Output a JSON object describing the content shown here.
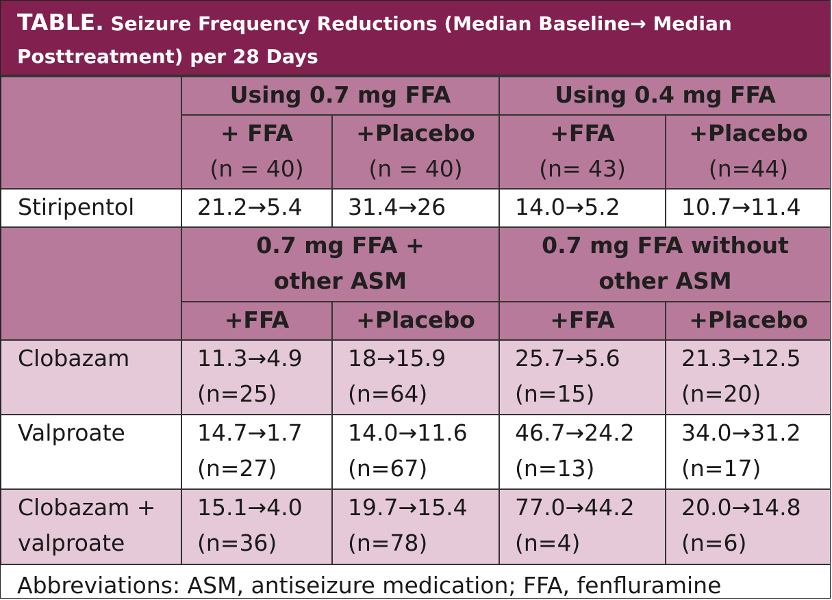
{
  "title": {
    "lead": "TABLE.",
    "line1": "Seizure Frequency Reductions (Median Baseline→ Median",
    "line2": "Posttreatment) per 28 Days"
  },
  "group_headers_top": [
    "Using 0.7 mg FFA",
    "Using 0.4 mg FFA"
  ],
  "sub_headers_top": [
    {
      "label": "+ FFA",
      "n": "(n = 40)"
    },
    {
      "label": "+Placebo",
      "n": "(n = 40)"
    },
    {
      "label": "+FFA",
      "n": "(n= 43)"
    },
    {
      "label": "+Placebo",
      "n": "(n=44)"
    }
  ],
  "stiripentol_row": {
    "label": "Stiripentol",
    "values": [
      "21.2→5.4",
      "31.4→26",
      "14.0→5.2",
      "10.7→11.4"
    ]
  },
  "group_headers_bottom": [
    {
      "line1": "0.7 mg FFA +",
      "line2": "other ASM"
    },
    {
      "line1": "0.7 mg FFA without",
      "line2": "other ASM"
    }
  ],
  "sub_headers_bottom": [
    "+FFA",
    "+Placebo",
    "+FFA",
    "+Placebo"
  ],
  "rows": [
    {
      "label_line1": "Clobazam",
      "label_line2": "",
      "cells": [
        {
          "value": "11.3→4.9",
          "n": "(n=25)"
        },
        {
          "value": "18→15.9",
          "n": "(n=64)"
        },
        {
          "value": "25.7→5.6",
          "n": "(n=15)"
        },
        {
          "value": "21.3→12.5",
          "n": "(n=20)"
        }
      ]
    },
    {
      "label_line1": "Valproate",
      "label_line2": "",
      "cells": [
        {
          "value": "14.7→1.7",
          "n": "(n=27)"
        },
        {
          "value": "14.0→11.6",
          "n": "(n=67)"
        },
        {
          "value": "46.7→24.2",
          "n": "(n=13)"
        },
        {
          "value": "34.0→31.2",
          "n": "(n=17)"
        }
      ]
    },
    {
      "label_line1": "Clobazam +",
      "label_line2": "valproate",
      "cells": [
        {
          "value": "15.1→4.0",
          "n": "(n=36)"
        },
        {
          "value": "19.7→15.4",
          "n": "(n=78)"
        },
        {
          "value": "77.0→44.2",
          "n": "(n=4)"
        },
        {
          "value": "20.0→14.8",
          "n": "(n=6)"
        }
      ]
    }
  ],
  "footer": "Abbreviations: ASM, antiseizure medication; FFA, fenfluramine",
  "colors": {
    "title_bg": "#82204f",
    "header_bg": "#b87a9a",
    "row_pink": "#e5c9d8",
    "row_white": "#ffffff"
  }
}
